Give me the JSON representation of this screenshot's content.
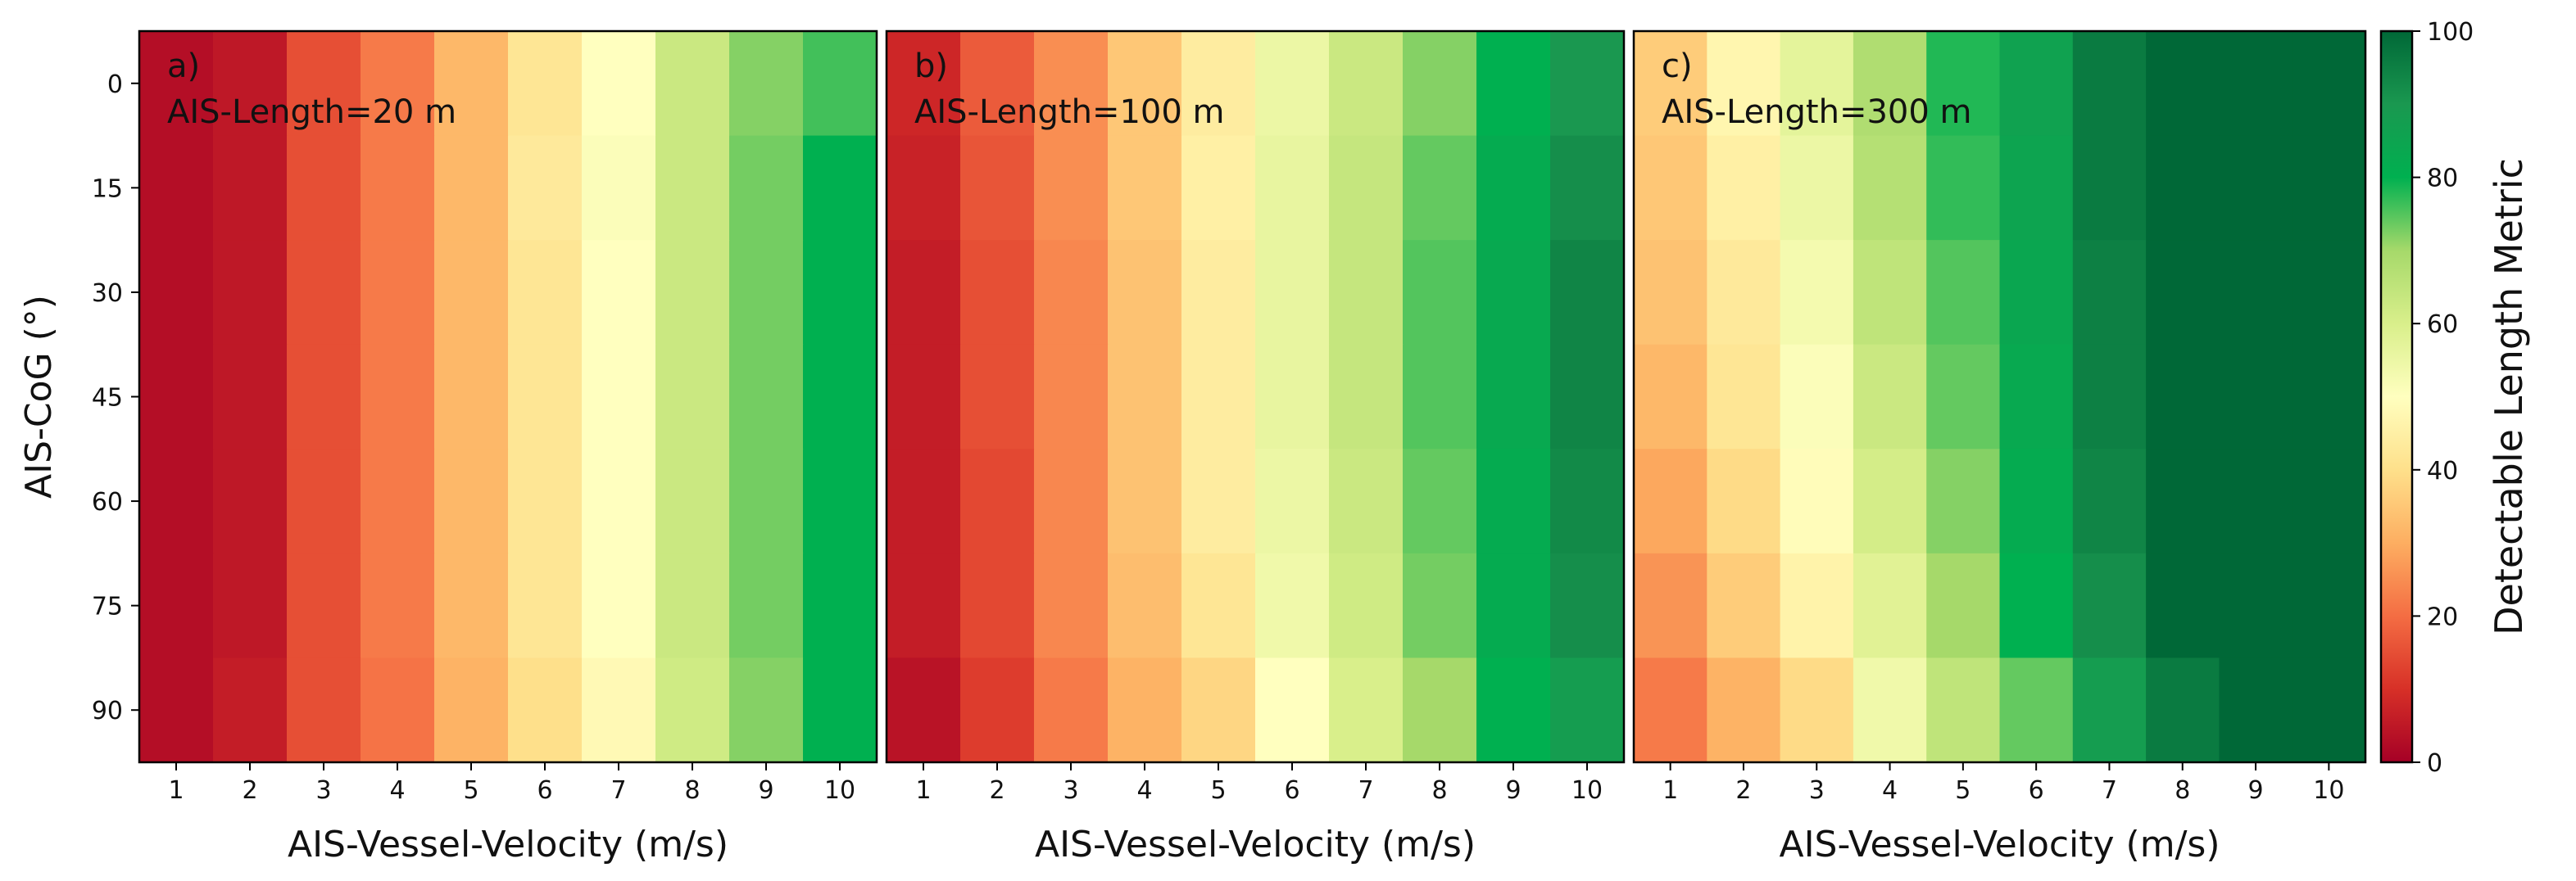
{
  "colormap": {
    "name": "RdYlGn",
    "min": 0,
    "max": 100,
    "stops": [
      {
        "t": 0.0,
        "color": "#a50026"
      },
      {
        "t": 0.1,
        "color": "#d73027"
      },
      {
        "t": 0.2,
        "color": "#f46d43"
      },
      {
        "t": 0.3,
        "color": "#fdae61"
      },
      {
        "t": 0.4,
        "color": "#fee08b"
      },
      {
        "t": 0.5,
        "color": "#ffffbf"
      },
      {
        "t": 0.6,
        "color": "#d9ef8b"
      },
      {
        "t": 0.7,
        "color": "#a6d96a"
      },
      {
        "t": 0.8,
        "color": "#00b050"
      },
      {
        "t": 0.9,
        "color": "#1a9850"
      },
      {
        "t": 1.0,
        "color": "#006837"
      }
    ]
  },
  "chart_data": [
    {
      "type": "heatmap",
      "panel": "a)",
      "title": "AIS-Length=20 m",
      "xlabel": "AIS-Vessel-Velocity (m/s)",
      "ylabel": "AIS-CoG (°)",
      "x": [
        1,
        2,
        3,
        4,
        5,
        6,
        7,
        8,
        9,
        10
      ],
      "y": [
        0,
        15,
        30,
        45,
        60,
        75,
        90
      ],
      "xticks": [
        "1",
        "2",
        "3",
        "4",
        "5",
        "6",
        "7",
        "8",
        "9",
        "10"
      ],
      "yticks": [
        "0",
        "15",
        "30",
        "45",
        "60",
        "75",
        "90"
      ],
      "values": [
        [
          3,
          5,
          15,
          22,
          32,
          42,
          50,
          63,
          72,
          76
        ],
        [
          3,
          5,
          15,
          22,
          32,
          43,
          51,
          63,
          73,
          80
        ],
        [
          3,
          5,
          15,
          22,
          32,
          42,
          50,
          63,
          73,
          80
        ],
        [
          3,
          5,
          15,
          22,
          32,
          42,
          50,
          63,
          73,
          80
        ],
        [
          3,
          5,
          15,
          22,
          32,
          42,
          50,
          63,
          73,
          80
        ],
        [
          3,
          5,
          15,
          22,
          32,
          42,
          50,
          63,
          73,
          80
        ],
        [
          3,
          6,
          15,
          21,
          31,
          40,
          48,
          62,
          72,
          80
        ]
      ]
    },
    {
      "type": "heatmap",
      "panel": "b)",
      "title": "AIS-Length=100 m",
      "xlabel": "AIS-Vessel-Velocity (m/s)",
      "ylabel": "",
      "x": [
        1,
        2,
        3,
        4,
        5,
        6,
        7,
        8,
        9,
        10
      ],
      "y": [
        0,
        15,
        30,
        45,
        60,
        75,
        90
      ],
      "xticks": [
        "1",
        "2",
        "3",
        "4",
        "5",
        "6",
        "7",
        "8",
        "9",
        "10"
      ],
      "yticks": [
        "0",
        "15",
        "30",
        "45",
        "60",
        "75",
        "90"
      ],
      "values": [
        [
          8,
          17,
          25,
          35,
          44,
          55,
          63,
          72,
          80,
          90
        ],
        [
          7,
          16,
          25,
          35,
          45,
          56,
          64,
          74,
          82,
          92
        ],
        [
          6,
          15,
          24,
          34,
          44,
          56,
          64,
          75,
          83,
          94
        ],
        [
          6,
          15,
          24,
          34,
          44,
          56,
          64,
          75,
          83,
          94
        ],
        [
          6,
          14,
          24,
          34,
          44,
          55,
          63,
          74,
          82,
          93
        ],
        [
          6,
          14,
          24,
          33,
          42,
          54,
          62,
          73,
          82,
          92
        ],
        [
          4,
          12,
          22,
          31,
          38,
          50,
          60,
          70,
          80,
          88
        ]
      ]
    },
    {
      "type": "heatmap",
      "panel": "c)",
      "title": "AIS-Length=300 m",
      "xlabel": "AIS-Vessel-Velocity (m/s)",
      "ylabel": "",
      "x": [
        1,
        2,
        3,
        4,
        5,
        6,
        7,
        8,
        9,
        10
      ],
      "y": [
        0,
        15,
        30,
        45,
        60,
        75,
        90
      ],
      "xticks": [
        "1",
        "2",
        "3",
        "4",
        "5",
        "6",
        "7",
        "8",
        "9",
        "10"
      ],
      "yticks": [
        "0",
        "15",
        "30",
        "45",
        "60",
        "75",
        "90"
      ],
      "values": [
        [
          36,
          47,
          57,
          68,
          78,
          86,
          96,
          100,
          100,
          100
        ],
        [
          35,
          45,
          55,
          67,
          77,
          85,
          96,
          100,
          100,
          100
        ],
        [
          34,
          43,
          53,
          65,
          75,
          84,
          95,
          100,
          100,
          100
        ],
        [
          32,
          42,
          51,
          63,
          74,
          83,
          95,
          100,
          100,
          100
        ],
        [
          29,
          39,
          49,
          61,
          72,
          82,
          94,
          100,
          100,
          100
        ],
        [
          26,
          36,
          46,
          58,
          70,
          80,
          92,
          100,
          100,
          100
        ],
        [
          22,
          31,
          39,
          54,
          65,
          74,
          88,
          96,
          100,
          100
        ]
      ]
    }
  ],
  "colorbar": {
    "label": "Detectable Length Metric",
    "min": 0,
    "max": 100,
    "ticks": [
      "0",
      "20",
      "40",
      "60",
      "80",
      "100"
    ]
  }
}
